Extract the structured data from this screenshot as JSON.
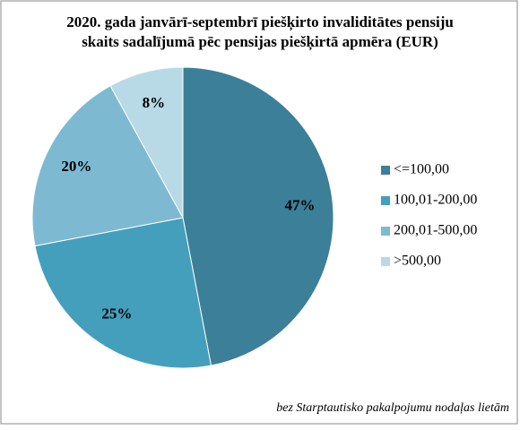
{
  "chart_data": {
    "type": "pie",
    "title": [
      "2020. gada janvārī-septembrī piešķirto invaliditātes  pensiju",
      "skaits sadalījumā pēc pensijas piešķirtā  apmēra (EUR)"
    ],
    "categories": [
      "<=100,00",
      "100,01-200,00",
      "200,01-500,00",
      ">500,00"
    ],
    "values": [
      47,
      25,
      20,
      8
    ],
    "value_labels": [
      "47%",
      "25%",
      "20%",
      "8%"
    ],
    "colors": [
      "#3b8098",
      "#449fbd",
      "#7dbad2",
      "#b8d9e6"
    ],
    "legend": "right",
    "annotation": "bez Starptautisko pakalpojumu nodaļas lietām"
  }
}
